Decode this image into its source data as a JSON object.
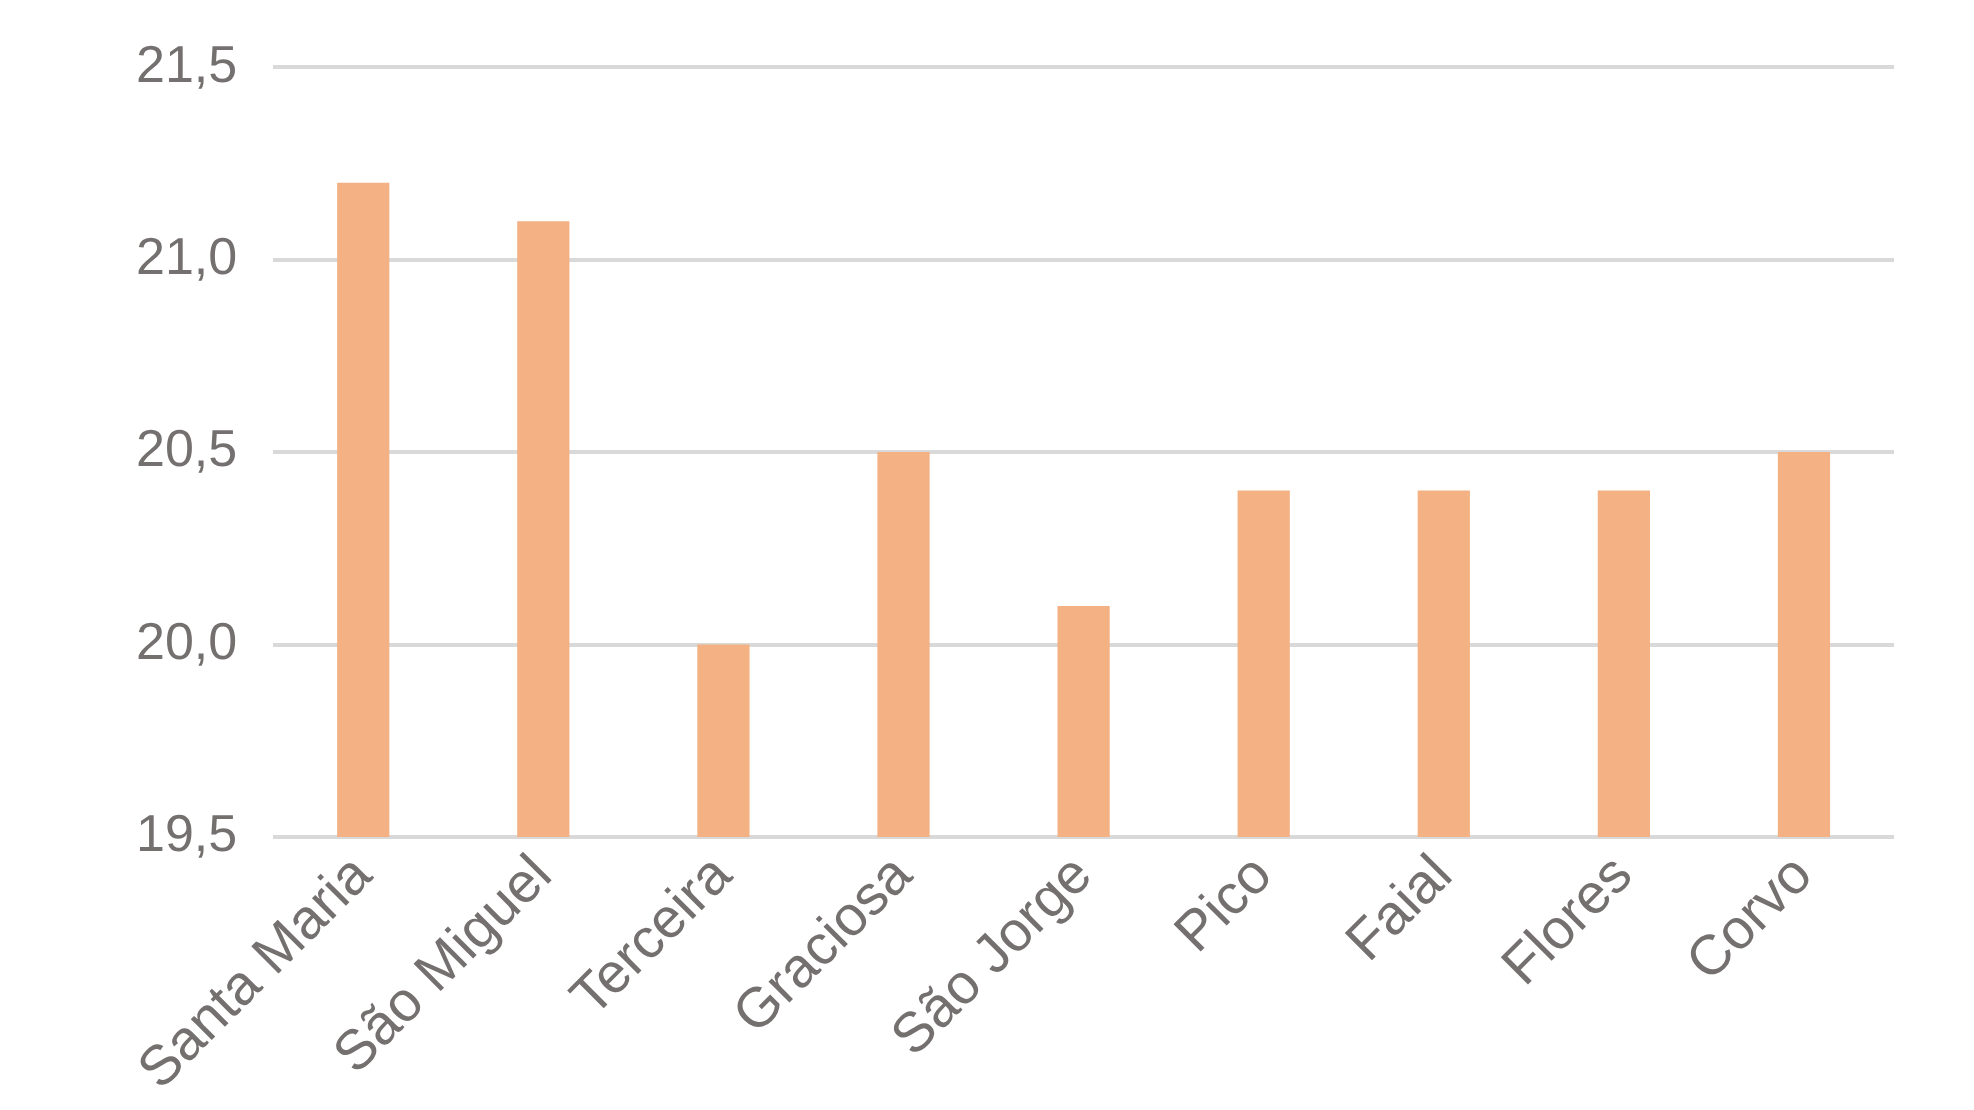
{
  "chart_data": {
    "type": "bar",
    "categories": [
      "Santa Maria",
      "São Miguel",
      "Terceira",
      "Graciosa",
      "São Jorge",
      "Pico",
      "Faial",
      "Flores",
      "Corvo"
    ],
    "values": [
      21.2,
      21.1,
      20.0,
      20.5,
      20.1,
      20.4,
      20.4,
      20.4,
      20.5
    ],
    "color": "#f4b183",
    "ylim": [
      19.5,
      21.5
    ],
    "yticks": [
      {
        "value": 19.5,
        "label": "19,5"
      },
      {
        "value": 20,
        "label": "20,0"
      },
      {
        "value": 20.5,
        "label": "20,5"
      },
      {
        "value": 21,
        "label": "21,0"
      },
      {
        "value": 21.5,
        "label": "21,5"
      }
    ],
    "grid": "y",
    "legend": false
  }
}
